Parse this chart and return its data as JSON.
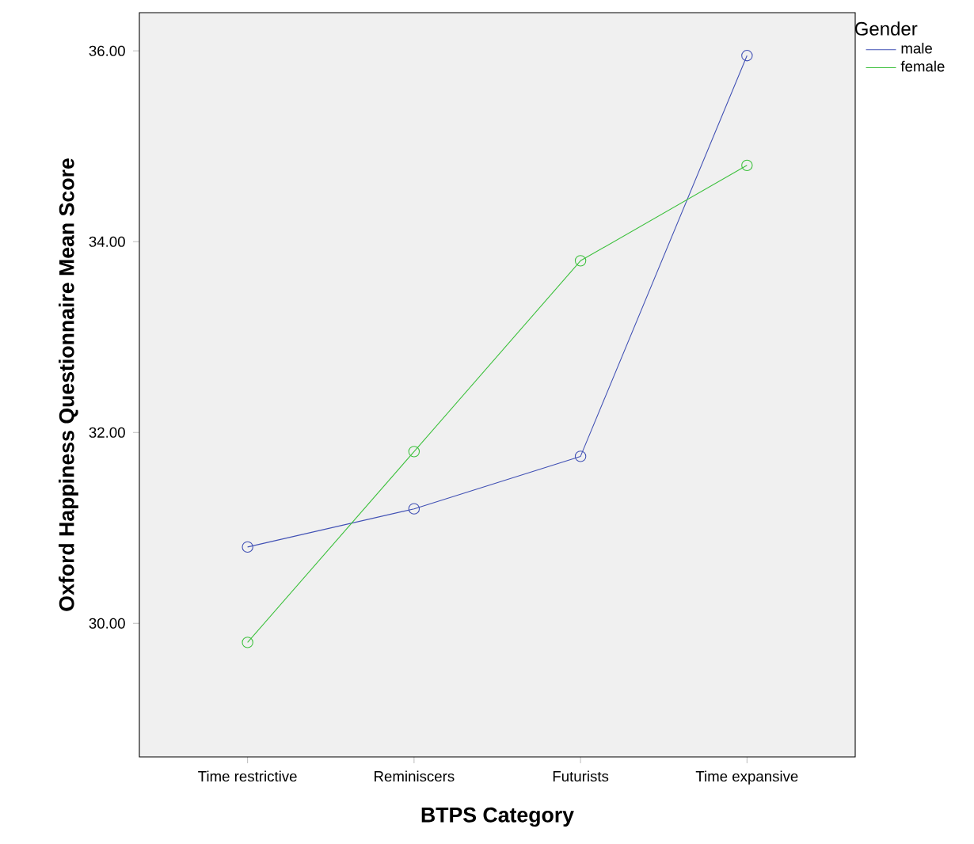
{
  "chart_data": {
    "type": "line",
    "xlabel": "BTPS Category",
    "ylabel": "Oxford Happiness Questionnaire Mean Score",
    "legend_title": "Gender",
    "categories": [
      "Time restrictive",
      "Reminiscers",
      "Futurists",
      "Time expansive"
    ],
    "series": [
      {
        "name": "male",
        "color": "#4050b4",
        "values": [
          30.8,
          31.2,
          31.75,
          35.95
        ]
      },
      {
        "name": "female",
        "color": "#3cc03c",
        "values": [
          29.8,
          31.8,
          33.8,
          34.8
        ]
      }
    ],
    "ylim": [
      28.6,
      36.4
    ],
    "yticks": [
      {
        "value": 30,
        "label": "30.00"
      },
      {
        "value": 32,
        "label": "32.00"
      },
      {
        "value": 34,
        "label": "34.00"
      },
      {
        "value": 36,
        "label": "36.00"
      }
    ],
    "marker": "circle",
    "legend": "top right",
    "grid": false
  }
}
